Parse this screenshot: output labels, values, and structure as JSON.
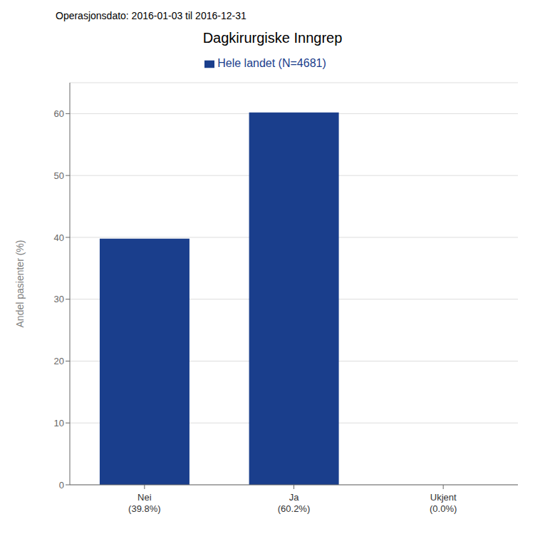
{
  "chart_data": {
    "type": "bar",
    "title": "Dagkirurgiske Inngrep",
    "subtitle": "Operasjonsdato: 2016-01-03 til 2016-12-31",
    "categories": [
      "Nei\n(39.8%)",
      "Ja\n(60.2%)",
      "Ukjent\n(0.0%)"
    ],
    "series": [
      {
        "name": "Hele landet (N=4681)",
        "color": "#1a3e8c",
        "values": [
          39.8,
          60.2,
          0.0
        ]
      }
    ],
    "ylabel": "Andel pasienter (%)",
    "ylim": [
      0,
      65
    ],
    "yticks": [
      0,
      10,
      20,
      30,
      40,
      50,
      60
    ],
    "grid": true,
    "legend": "top"
  }
}
